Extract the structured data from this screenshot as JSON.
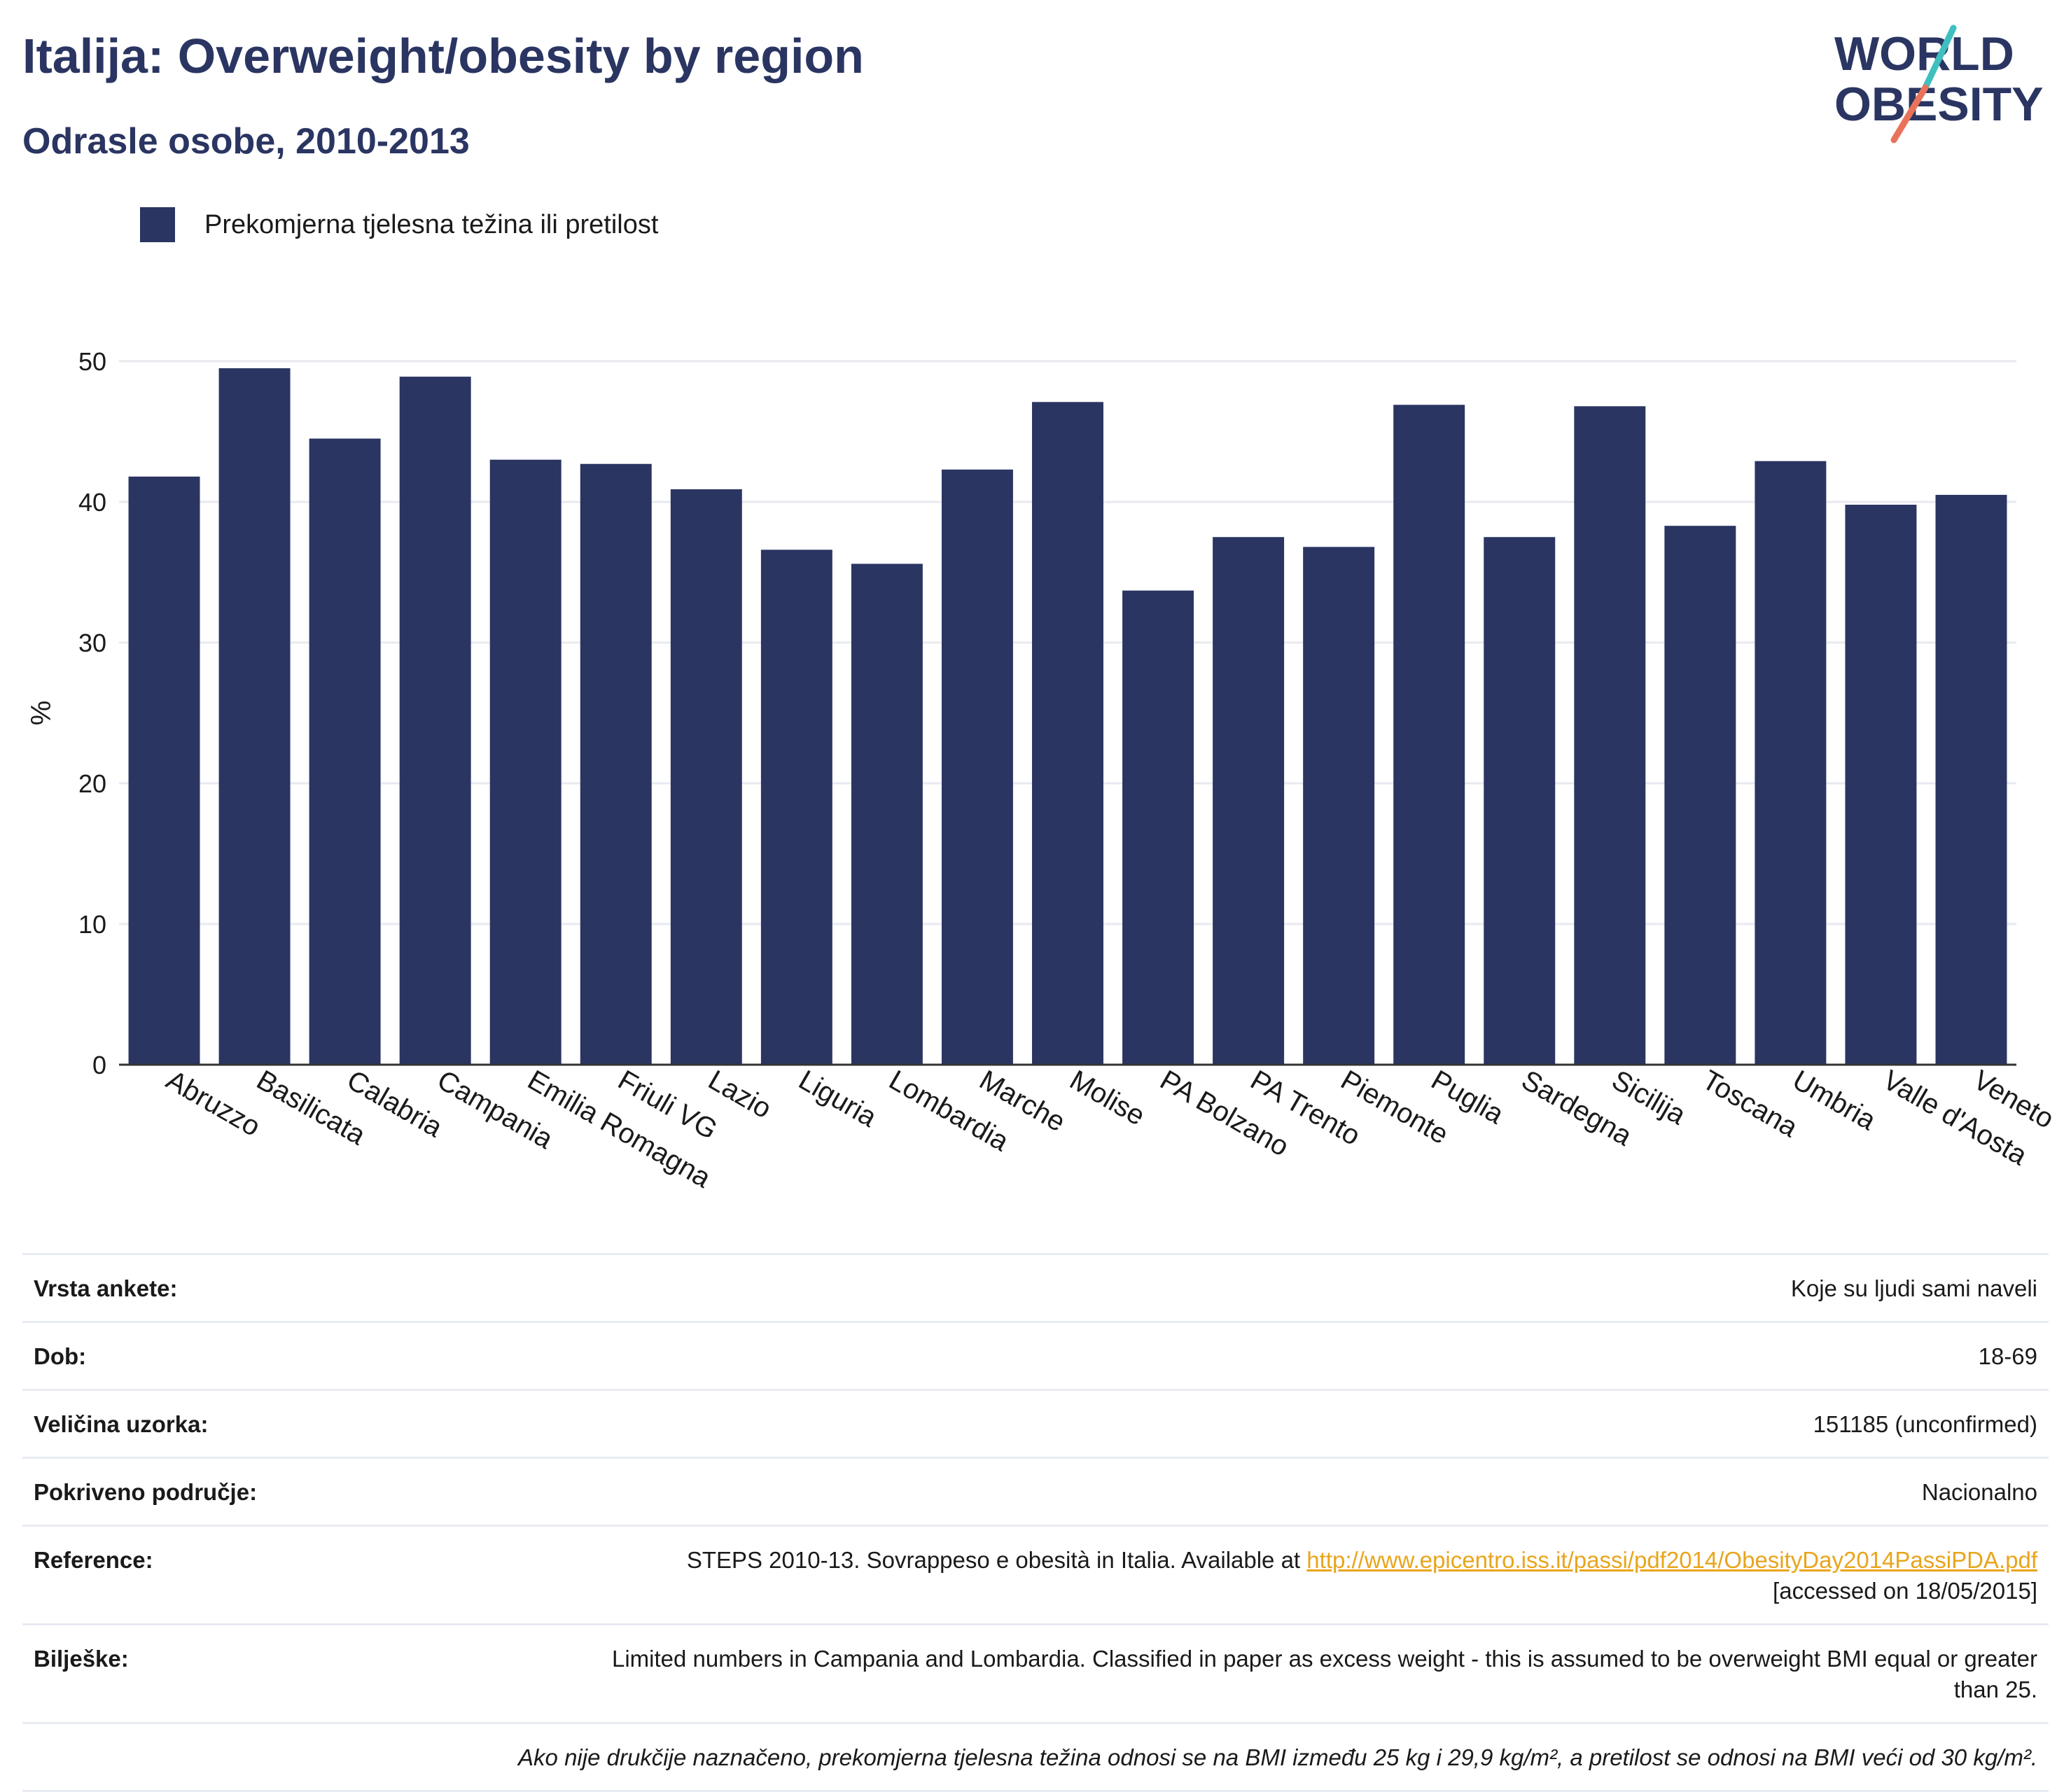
{
  "header": {
    "title": "Italija: Overweight/obesity by region",
    "subtitle": "Odrasle osobe, 2010-2013",
    "logo_line1": "WORLD",
    "logo_line2": "OBESITY"
  },
  "legend": {
    "label": "Prekomjerna tjelesna težina ili pretilost"
  },
  "colors": {
    "bar": "#2a3562",
    "accent_teal": "#3fbfbf",
    "accent_coral": "#e8735a",
    "link": "#e8a51c"
  },
  "chart_data": {
    "type": "bar",
    "categories": [
      "Abruzzo",
      "Basilicata",
      "Calabria",
      "Campania",
      "Emilia Romagna",
      "Friuli VG",
      "Lazio",
      "Liguria",
      "Lombardia",
      "Marche",
      "Molise",
      "PA Bolzano",
      "PA Trento",
      "Piemonte",
      "Puglia",
      "Sardegna",
      "Sicilija",
      "Toscana",
      "Umbria",
      "Valle d'Aosta",
      "Veneto"
    ],
    "series": [
      {
        "name": "Prekomjerna tjelesna težina ili pretilost",
        "values": [
          41.8,
          49.5,
          44.5,
          48.9,
          43.0,
          42.7,
          40.9,
          36.6,
          35.6,
          42.3,
          47.1,
          33.7,
          37.5,
          36.8,
          46.9,
          37.5,
          46.8,
          38.3,
          42.9,
          39.8,
          40.5
        ]
      }
    ],
    "ylabel": "%",
    "ylim": [
      0,
      50
    ],
    "yticks": [
      0,
      10,
      20,
      30,
      40,
      50
    ],
    "grid": true,
    "legend_position": "top-left"
  },
  "info": {
    "survey_label": "Vrsta ankete:",
    "survey_value": "Koje su ljudi sami naveli",
    "age_label": "Dob:",
    "age_value": "18-69",
    "sample_label": "Veličina uzorka:",
    "sample_value": "151185 (unconfirmed)",
    "area_label": "Pokriveno područje:",
    "area_value": "Nacionalno",
    "ref_label": "Reference:",
    "ref_text": "STEPS 2010-13. Sovrappeso e obesità in Italia. Available at ",
    "ref_link": "http://www.epicentro.iss.it/passi/pdf2014/ObesityDay2014PassiPDA.pdf",
    "ref_accessed": "[accessed on 18/05/2015]",
    "notes_label": "Bilješke:",
    "notes_value": "Limited numbers in Campania and Lombardia. Classified in paper as excess weight - this is assumed to be overweight BMI equal or greater than 25.",
    "footnote": "Ako nije drukčije naznačeno, prekomjerna tjelesna težina odnosi se na BMI između 25 kg i 29,9 kg/m², a pretilost se odnosi na BMI veći od 30 kg/m²."
  }
}
